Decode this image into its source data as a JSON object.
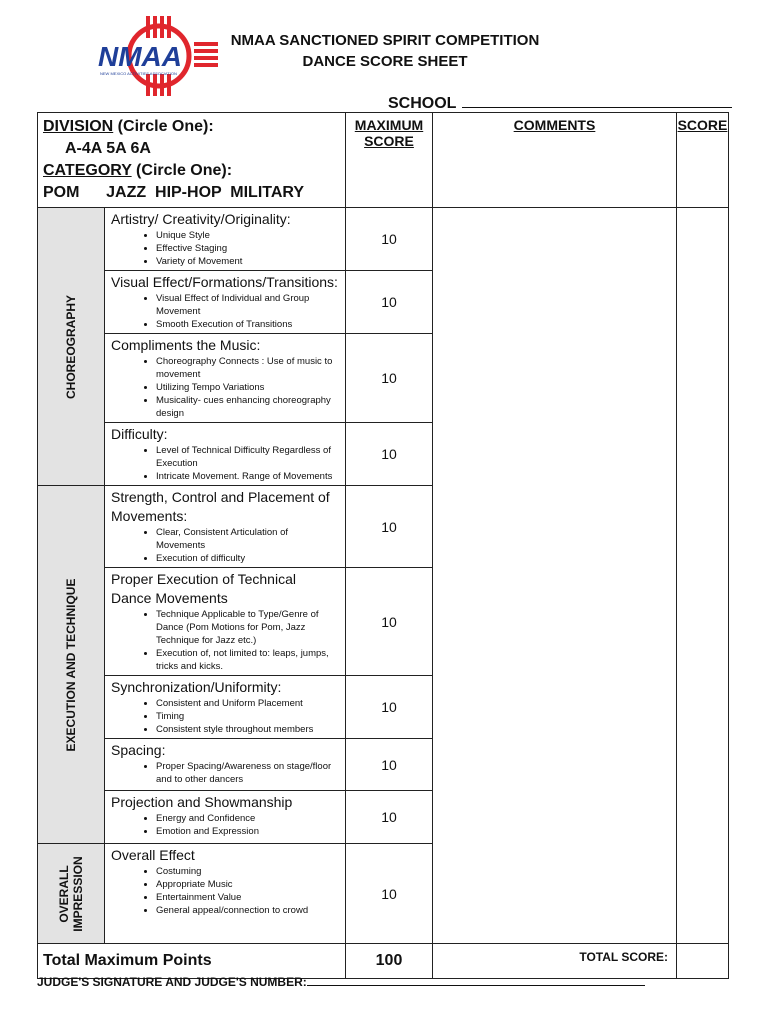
{
  "logo": {
    "text": "NMAA",
    "subtext": "NEW MEXICO ACTIVITIES ASSOCIATION",
    "colors": {
      "blue": "#1f3f99",
      "red": "#e0262d"
    }
  },
  "title": [
    "NMAA SANCTIONED SPIRIT COMPETITION",
    "DANCE SCORE SHEET"
  ],
  "school_label": "SCHOOL",
  "header": {
    "division_label": "DIVISION",
    "circle_one": " (Circle One):",
    "divisions": "A-4A   5A   6A",
    "category_label": "CATEGORY",
    "categories": "POM      JAZZ  HIP-HOP  MILITARY",
    "max_score": "MAXIMUM SCORE",
    "comments": "COMMENTS",
    "score": "SCORE"
  },
  "sections": [
    "CHOREOGRAPHY",
    "EXECUTION AND TECHNIQUE",
    "OVERALL IMPRESSION"
  ],
  "criteria": [
    {
      "title": "Artistry/ Creativity/Originality:",
      "bullets": [
        "Unique Style",
        "Effective Staging",
        "Variety of Movement"
      ],
      "max": "10"
    },
    {
      "title": "Visual Effect/Formations/Transitions:",
      "bullets": [
        "Visual Effect of Individual and Group Movement",
        "Smooth Execution of Transitions"
      ],
      "max": "10"
    },
    {
      "title": "Compliments the Music:",
      "bullets": [
        "Choreography Connects : Use of music to movement",
        "Utilizing Tempo Variations",
        "Musicality- cues enhancing choreography design"
      ],
      "max": "10"
    },
    {
      "title": "Difficulty:",
      "bullets": [
        "Level of Technical Difficulty Regardless of Execution",
        "Intricate Movement. Range of Movements"
      ],
      "max": "10"
    },
    {
      "title": "Strength, Control and Placement of Movements:",
      "bullets": [
        "Clear, Consistent Articulation of Movements",
        "Execution of difficulty"
      ],
      "max": "10"
    },
    {
      "title": "Proper Execution of Technical Dance Movements",
      "bullets": [
        "Technique Applicable to Type/Genre of Dance (Pom Motions for Pom, Jazz Technique for Jazz etc.)",
        "Execution of, not limited to: leaps, jumps, tricks and kicks."
      ],
      "max": "10"
    },
    {
      "title": "Synchronization/Uniformity:",
      "bullets": [
        "Consistent and Uniform Placement",
        "Timing",
        "Consistent style throughout members"
      ],
      "max": "10"
    },
    {
      "title": "Spacing:",
      "bullets": [
        "Proper Spacing/Awareness on stage/floor and to other dancers"
      ],
      "max": "10"
    },
    {
      "title": "Projection and Showmanship",
      "bullets": [
        "Energy and Confidence",
        "Emotion and Expression"
      ],
      "max": "10"
    },
    {
      "title": "Overall Effect",
      "bullets": [
        "Costuming",
        "Appropriate Music",
        "Entertainment Value",
        "General appeal/connection to crowd"
      ],
      "max": "10"
    }
  ],
  "total": {
    "label": "Total Maximum Points",
    "max": "100",
    "score_label": "TOTAL SCORE:"
  },
  "judge_label": "JUDGE'S SIGNATURE AND JUDGE'S NUMBER:"
}
